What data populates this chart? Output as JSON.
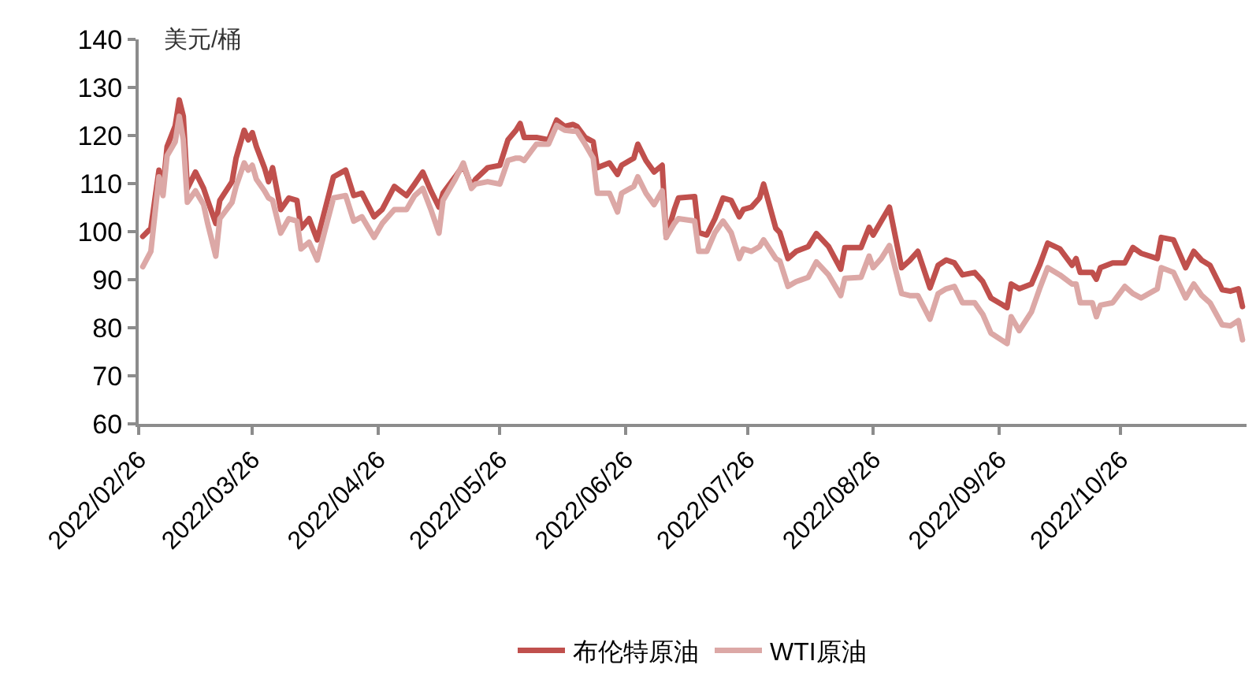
{
  "chart_data": {
    "type": "line",
    "ylabel": "美元/桶",
    "x": [
      "2022-02-27",
      "2022-03-01",
      "2022-03-03",
      "2022-03-04",
      "2022-03-05",
      "2022-03-07",
      "2022-03-08",
      "2022-03-09",
      "2022-03-10",
      "2022-03-12",
      "2022-03-14",
      "2022-03-15",
      "2022-03-17",
      "2022-03-18",
      "2022-03-21",
      "2022-03-22",
      "2022-03-24",
      "2022-03-25",
      "2022-03-26",
      "2022-03-27",
      "2022-03-29",
      "2022-03-30",
      "2022-03-31",
      "2022-04-02",
      "2022-04-04",
      "2022-04-06",
      "2022-04-07",
      "2022-04-09",
      "2022-04-11",
      "2022-04-15",
      "2022-04-18",
      "2022-04-20",
      "2022-04-22",
      "2022-04-25",
      "2022-04-27",
      "2022-04-30",
      "2022-05-03",
      "2022-05-05",
      "2022-05-07",
      "2022-05-09",
      "2022-05-11",
      "2022-05-12",
      "2022-05-15",
      "2022-05-17",
      "2022-05-19",
      "2022-05-20",
      "2022-05-23",
      "2022-05-26",
      "2022-05-28",
      "2022-05-30",
      "2022-05-31",
      "2022-06-01",
      "2022-06-04",
      "2022-06-07",
      "2022-06-09",
      "2022-06-11",
      "2022-06-13",
      "2022-06-14",
      "2022-06-16",
      "2022-06-18",
      "2022-06-19",
      "2022-06-22",
      "2022-06-24",
      "2022-06-25",
      "2022-06-28",
      "2022-06-29",
      "2022-07-01",
      "2022-07-03",
      "2022-07-05",
      "2022-07-06",
      "2022-07-08",
      "2022-07-09",
      "2022-07-13",
      "2022-07-14",
      "2022-07-16",
      "2022-07-18",
      "2022-07-20",
      "2022-07-22",
      "2022-07-24",
      "2022-07-25",
      "2022-07-27",
      "2022-07-29",
      "2022-07-30",
      "2022-08-02",
      "2022-08-03",
      "2022-08-05",
      "2022-08-07",
      "2022-08-10",
      "2022-08-12",
      "2022-08-15",
      "2022-08-18",
      "2022-08-19",
      "2022-08-23",
      "2022-08-25",
      "2022-08-26",
      "2022-08-28",
      "2022-08-30",
      "2022-09-02",
      "2022-09-04",
      "2022-09-06",
      "2022-09-09",
      "2022-09-11",
      "2022-09-13",
      "2022-09-15",
      "2022-09-17",
      "2022-09-20",
      "2022-09-22",
      "2022-09-24",
      "2022-09-28",
      "2022-09-29",
      "2022-10-01",
      "2022-10-04",
      "2022-10-06",
      "2022-10-08",
      "2022-10-11",
      "2022-10-14",
      "2022-10-15",
      "2022-10-16",
      "2022-10-19",
      "2022-10-20",
      "2022-10-21",
      "2022-10-24",
      "2022-10-27",
      "2022-10-29",
      "2022-10-31",
      "2022-11-04",
      "2022-11-05",
      "2022-11-08",
      "2022-11-11",
      "2022-11-13",
      "2022-11-15",
      "2022-11-17",
      "2022-11-20",
      "2022-11-22",
      "2022-11-24",
      "2022-11-25"
    ],
    "series": [
      {
        "name": "布伦特原油",
        "color": "#c0504d",
        "values": [
          99.0,
          100.7,
          112.8,
          109,
          117.7,
          122,
          127.4,
          124,
          109,
          112.4,
          109,
          106.5,
          101.7,
          106.5,
          110.4,
          115.3,
          121.1,
          119.1,
          120.6,
          117.7,
          113.3,
          110.4,
          113.3,
          104.6,
          107,
          106.5,
          100.7,
          102.7,
          98.3,
          111.4,
          112.8,
          107.5,
          108,
          103.1,
          104.6,
          109.4,
          107.5,
          109.9,
          112.4,
          108.5,
          105.1,
          108,
          111.4,
          113.8,
          109.4,
          110.9,
          113.3,
          113.8,
          119.1,
          121.1,
          122.5,
          119.6,
          119.6,
          119.1,
          123.2,
          121.9,
          122.3,
          121.9,
          119.6,
          118.7,
          113.3,
          114.3,
          111.9,
          113.8,
          115.3,
          118.2,
          114.8,
          112.4,
          113.8,
          98.8,
          104.6,
          107,
          107.3,
          99.8,
          99.3,
          102.7,
          107,
          106.5,
          103.1,
          104.6,
          105.1,
          107,
          109.9,
          100.7,
          99.8,
          94.4,
          95.9,
          96.9,
          99.6,
          96.9,
          92.2,
          96.7,
          96.7,
          100.9,
          99.3,
          102.2,
          105.1,
          92.5,
          94,
          95.9,
          88.3,
          93,
          94.1,
          93.5,
          91,
          91.5,
          89.6,
          86.2,
          84.2,
          89.1,
          88.1,
          89.1,
          93,
          97.6,
          96.4,
          93,
          94.4,
          91.5,
          91.5,
          90.1,
          92.5,
          93.5,
          93.5,
          96.7,
          95.5,
          94.4,
          98.8,
          98.3,
          92.5,
          95.9,
          94,
          93,
          87.9,
          87.6,
          88.1,
          84.4
        ]
      },
      {
        "name": "WTI原油",
        "color": "#dca8a6",
        "values": [
          92.7,
          95.9,
          111.4,
          107.5,
          115.8,
          118.7,
          124,
          119.1,
          106.1,
          108.5,
          105.6,
          101.7,
          94.9,
          102.7,
          106.1,
          109.4,
          114.3,
          112.8,
          113.8,
          110.9,
          108.5,
          107,
          106.5,
          99.7,
          102.7,
          102.2,
          96.4,
          97.8,
          94.1,
          107,
          107.5,
          102.2,
          103.1,
          98.8,
          101.7,
          104.6,
          104.6,
          107.5,
          109,
          104.6,
          99.7,
          106.5,
          110.9,
          114.3,
          109,
          109.9,
          110.4,
          109.9,
          114.8,
          115.3,
          115.3,
          114.8,
          118.2,
          118.2,
          122.1,
          121.1,
          120.9,
          120.9,
          118.2,
          115.3,
          108,
          108,
          104.1,
          108,
          109.4,
          111.4,
          108,
          105.6,
          108.5,
          98.8,
          101.7,
          102.7,
          102.2,
          95.9,
          95.9,
          99.8,
          102.2,
          99.8,
          94.4,
          96.4,
          95.9,
          96.9,
          98.3,
          94.4,
          93.9,
          88.6,
          89.6,
          90.5,
          93.7,
          91,
          86.7,
          90.3,
          90.5,
          94.9,
          92.5,
          94.4,
          97.1,
          87.1,
          86.7,
          86.7,
          81.8,
          87.1,
          88.1,
          88.6,
          85.2,
          85.2,
          82.8,
          78.9,
          76.7,
          82.3,
          79.4,
          83.3,
          88.1,
          92.5,
          91,
          89.1,
          89.1,
          85.2,
          85.2,
          82.3,
          84.7,
          85.2,
          88.6,
          87.1,
          86.2,
          88.1,
          92.5,
          91.5,
          86.2,
          89.1,
          86.7,
          85.2,
          80.6,
          80.4,
          81.5,
          77.5
        ]
      }
    ],
    "xlim": [
      "2022-02-26",
      "2022-11-26"
    ],
    "xticks": [
      {
        "value": "2022-02-26",
        "label": "2022/02/26"
      },
      {
        "value": "2022-03-26",
        "label": "2022/03/26"
      },
      {
        "value": "2022-04-26",
        "label": "2022/04/26"
      },
      {
        "value": "2022-05-26",
        "label": "2022/05/26"
      },
      {
        "value": "2022-06-26",
        "label": "2022/06/26"
      },
      {
        "value": "2022-07-26",
        "label": "2022/07/26"
      },
      {
        "value": "2022-08-26",
        "label": "2022/08/26"
      },
      {
        "value": "2022-09-26",
        "label": "2022/09/26"
      },
      {
        "value": "2022-10-26",
        "label": "2022/10/26"
      }
    ],
    "ylim": [
      60,
      140
    ],
    "yticks": [
      60,
      70,
      80,
      90,
      100,
      110,
      120,
      130,
      140
    ],
    "legend": "bottom",
    "marker": "none",
    "line_style": "solid"
  }
}
